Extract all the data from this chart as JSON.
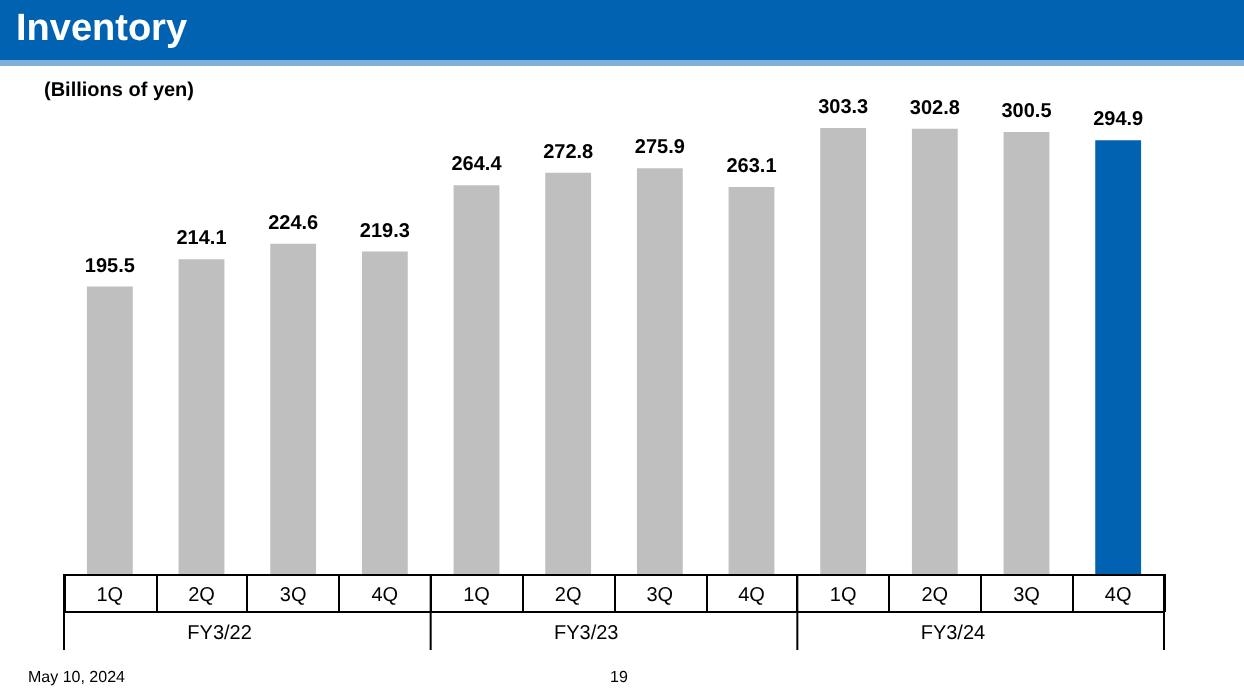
{
  "chart_data": {
    "type": "bar",
    "title": "Inventory",
    "ylabel": "(Billions of yen)",
    "categories": [
      "1Q",
      "2Q",
      "3Q",
      "4Q",
      "1Q",
      "2Q",
      "3Q",
      "4Q",
      "1Q",
      "2Q",
      "3Q",
      "4Q"
    ],
    "values": [
      195.5,
      214.1,
      224.6,
      219.3,
      264.4,
      272.8,
      275.9,
      263.1,
      303.3,
      302.8,
      300.5,
      294.9
    ],
    "colors": [
      "#bfbfbf",
      "#bfbfbf",
      "#bfbfbf",
      "#bfbfbf",
      "#bfbfbf",
      "#bfbfbf",
      "#bfbfbf",
      "#bfbfbf",
      "#bfbfbf",
      "#bfbfbf",
      "#bfbfbf",
      "#0062b1"
    ],
    "data_labels": true,
    "annotations": [
      "FY3/22",
      "FY3/23",
      "FY3/24",
      "May 10, 2024",
      "19"
    ]
  }
}
